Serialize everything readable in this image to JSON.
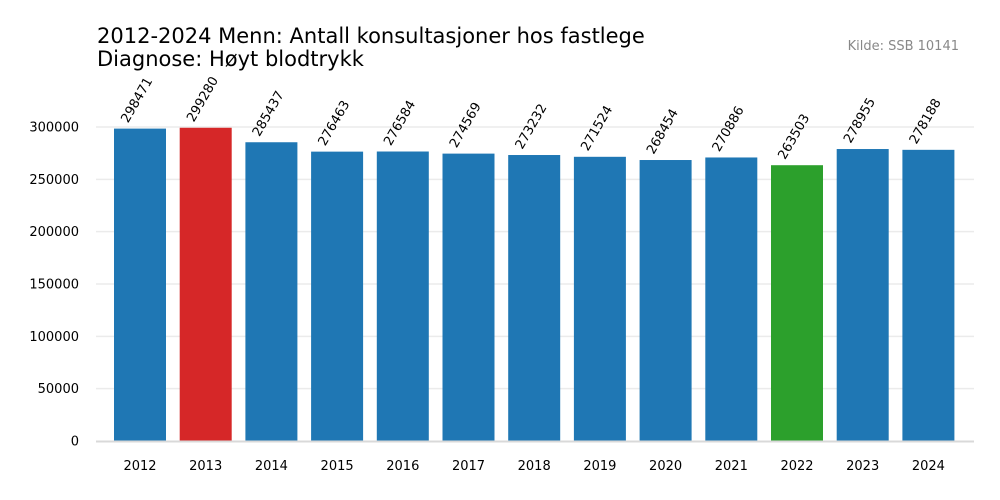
{
  "chart_data": {
    "type": "bar",
    "title_line1": "2012-2024 Menn: Antall konsultasjoner hos fastlege",
    "title_line2": "Diagnose: Høyt blodtrykk",
    "source": "Kilde: SSB 10141",
    "categories": [
      "2012",
      "2013",
      "2014",
      "2015",
      "2016",
      "2017",
      "2018",
      "2019",
      "2020",
      "2021",
      "2022",
      "2023",
      "2024"
    ],
    "values": [
      298471,
      299280,
      285437,
      276463,
      276584,
      274569,
      273232,
      271524,
      268454,
      270886,
      263503,
      278955,
      278188
    ],
    "value_labels": [
      "298471",
      "299280",
      "285437",
      "276463",
      "276584",
      "274569",
      "273232",
      "271524",
      "268454",
      "270886",
      "263503",
      "278955",
      "278188"
    ],
    "colors": [
      "#1f77b4",
      "#d62728",
      "#1f77b4",
      "#1f77b4",
      "#1f77b4",
      "#1f77b4",
      "#1f77b4",
      "#1f77b4",
      "#1f77b4",
      "#1f77b4",
      "#2ca02c",
      "#1f77b4",
      "#1f77b4"
    ],
    "yticks": [
      0,
      50000,
      100000,
      150000,
      200000,
      250000,
      300000
    ],
    "ytick_labels": [
      "0",
      "50000",
      "100000",
      "150000",
      "200000",
      "250000",
      "300000"
    ],
    "ylim": [
      0,
      300000
    ],
    "grid": true,
    "xlabel": "",
    "ylabel": ""
  }
}
